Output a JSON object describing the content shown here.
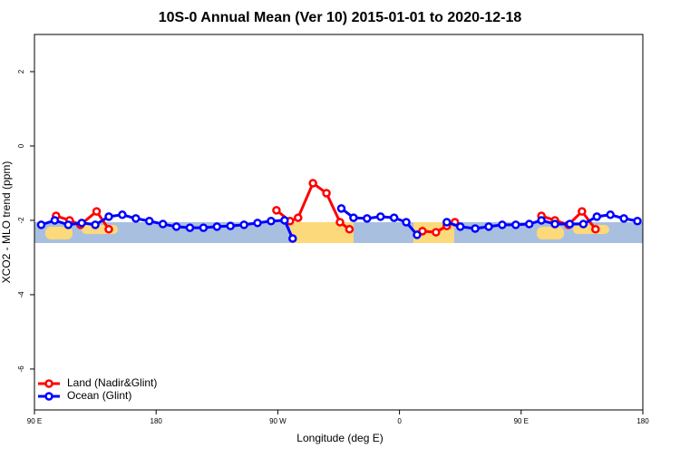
{
  "chart_data": {
    "type": "line",
    "title": "10S-0 Annual Mean (Ver 10)   2015-01-01 to 2020-12-18",
    "x_label": "Longitude (deg E)",
    "y_label": "XCO2 - MLO trend (ppm)",
    "xlim": [
      90,
      540
    ],
    "xticks": [
      {
        "value": 90,
        "label": "90 E"
      },
      {
        "value": 180,
        "label": "180"
      },
      {
        "value": 270,
        "label": "90 W"
      },
      {
        "value": 360,
        "label": "0"
      },
      {
        "value": 450,
        "label": "90 E"
      },
      {
        "value": 540,
        "label": "180"
      }
    ],
    "ylim": [
      -7.1,
      3
    ],
    "yticks": [
      2,
      0,
      -2,
      -4,
      -6
    ],
    "legend": "bottom-left",
    "series": [
      {
        "name": "Land (Nadir&Glint)",
        "color": "#ff0000",
        "x": [
          106,
          116,
          124,
          136,
          145,
          null,
          269,
          279,
          285,
          296,
          306,
          316,
          323,
          null,
          377,
          387,
          395,
          401,
          null,
          465,
          475,
          485,
          495,
          505
        ],
        "values": [
          -1.88,
          -2.0,
          -2.12,
          -1.76,
          -2.24,
          null,
          -1.73,
          -2.02,
          -1.93,
          -1.0,
          -1.27,
          -2.05,
          -2.24,
          null,
          -2.29,
          -2.32,
          -2.15,
          -2.05,
          null,
          -1.88,
          -2.0,
          -2.12,
          -1.76,
          -2.24
        ]
      },
      {
        "name": "Ocean (Glint)",
        "color": "#0000ff",
        "x": [
          95,
          105,
          115,
          125,
          135,
          145,
          155,
          165,
          175,
          185,
          195,
          205,
          215,
          225,
          235,
          245,
          255,
          265,
          275,
          281,
          null,
          317,
          326,
          336,
          346,
          356,
          365,
          373,
          null,
          395,
          405,
          416,
          426,
          436,
          446,
          456,
          465,
          475,
          486,
          496,
          506,
          516,
          526,
          536
        ],
        "values": [
          -2.12,
          -2.0,
          -2.12,
          -2.07,
          -2.12,
          -1.9,
          -1.85,
          -1.95,
          -2.02,
          -2.1,
          -2.17,
          -2.2,
          -2.2,
          -2.17,
          -2.15,
          -2.12,
          -2.07,
          -2.02,
          -2.0,
          -2.49,
          null,
          -1.68,
          -1.93,
          -1.95,
          -1.9,
          -1.93,
          -2.05,
          -2.39,
          null,
          -2.05,
          -2.17,
          -2.22,
          -2.17,
          -2.12,
          -2.12,
          -2.1,
          -2.0,
          -2.1,
          -2.1,
          -2.1,
          -1.9,
          -1.85,
          -1.95,
          -2.02
        ]
      }
    ]
  }
}
